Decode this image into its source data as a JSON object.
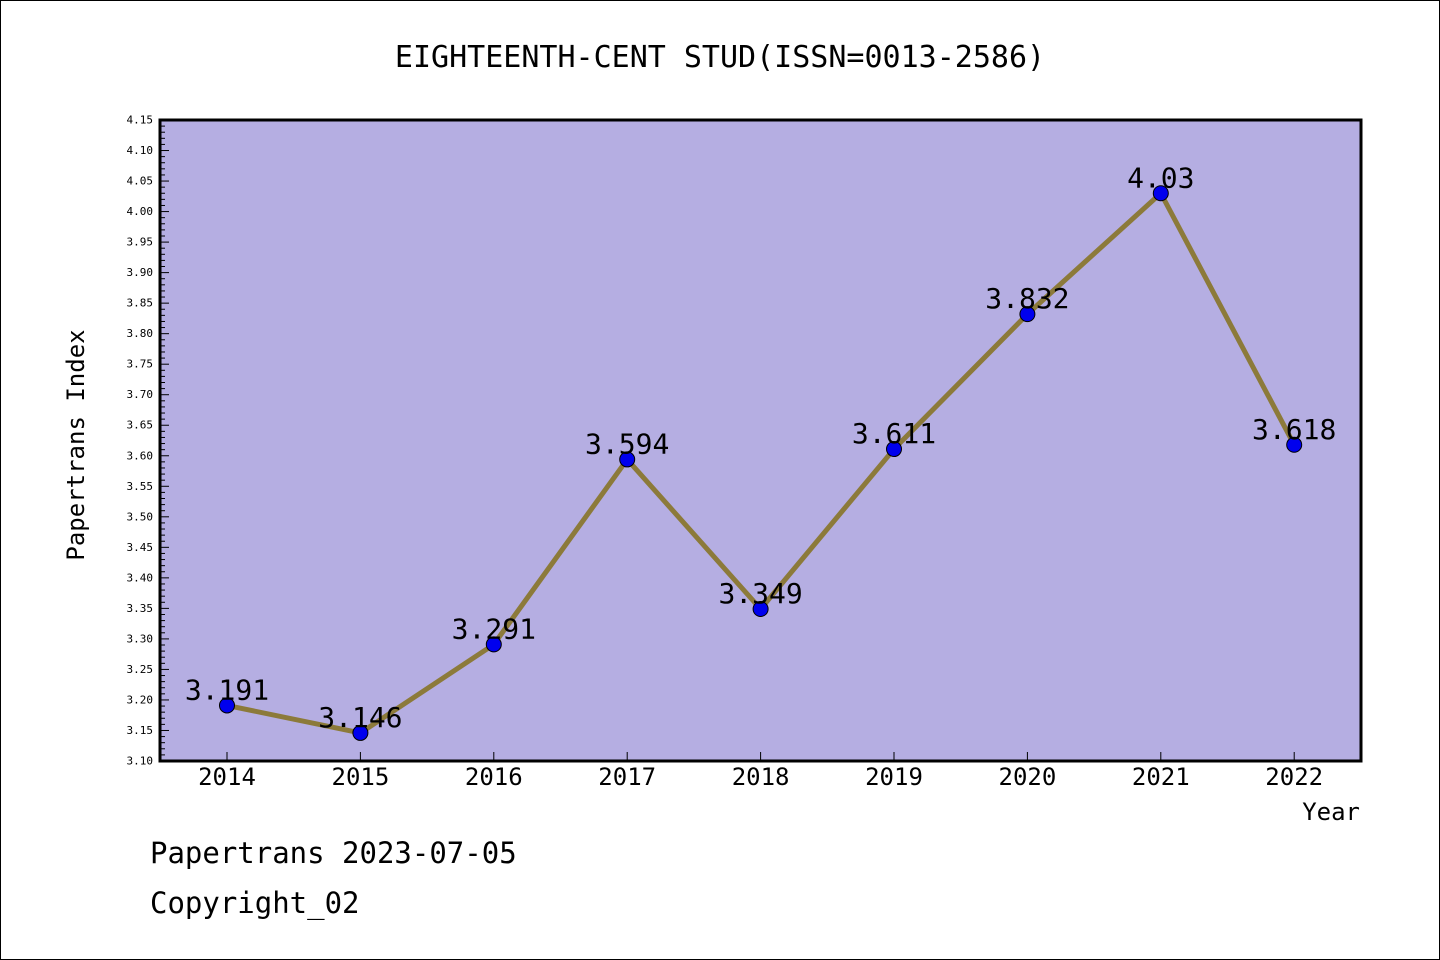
{
  "chart_data": {
    "type": "line",
    "title": "EIGHTEENTH-CENT STUD(ISSN=0013-2586)",
    "xlabel": "Year",
    "ylabel": "Papertrans Index",
    "categories": [
      "2014",
      "2015",
      "2016",
      "2017",
      "2018",
      "2019",
      "2020",
      "2021",
      "2022"
    ],
    "series": [
      {
        "values": [
          3.191,
          3.146,
          3.291,
          3.594,
          3.349,
          3.611,
          3.832,
          4.03,
          3.618
        ],
        "data_labels": [
          "3.191",
          "3.146",
          "3.291",
          "3.594",
          "3.349",
          "3.611",
          "3.832",
          "4.03",
          "3.618"
        ]
      }
    ],
    "ylim": [
      3.1,
      4.15
    ],
    "ytick_step": 0.05,
    "ytick_labels": [
      "3.10",
      "3.15",
      "3.20",
      "3.25",
      "3.30",
      "3.35",
      "3.40",
      "3.45",
      "3.50",
      "3.55",
      "3.60",
      "3.65",
      "3.70",
      "3.75",
      "3.80",
      "3.85",
      "3.90",
      "3.95",
      "4.00",
      "4.05",
      "4.10",
      "4.15"
    ],
    "grid": false,
    "legend": "none",
    "colors": {
      "plot_background": "#b5aee2",
      "line": "#8c7a3a",
      "marker": "#0000ee",
      "axis": "#000000"
    }
  },
  "footer": {
    "date_line": "Papertrans 2023-07-05",
    "copyright_line": "Copyright_02"
  }
}
